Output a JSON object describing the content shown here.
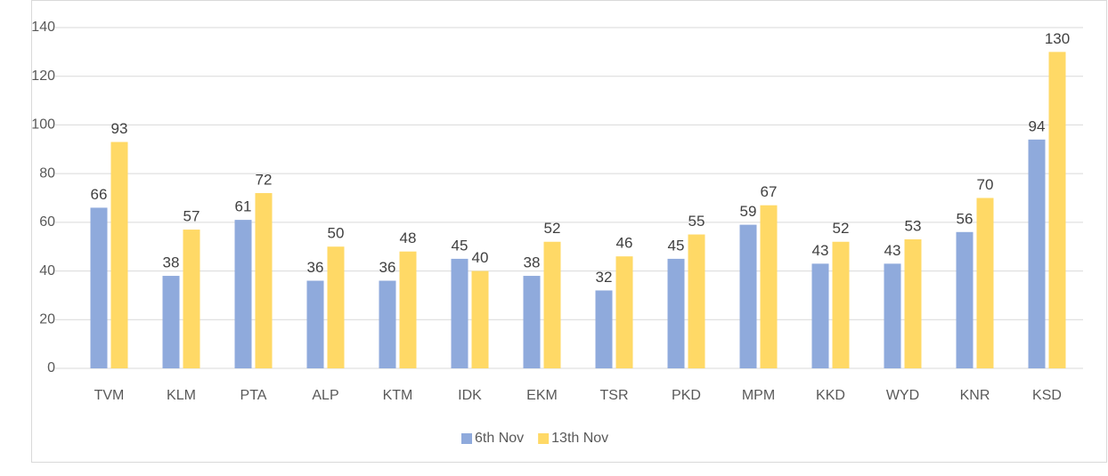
{
  "chart_data": {
    "type": "bar",
    "categories": [
      "TVM",
      "KLM",
      "PTA",
      "ALP",
      "KTM",
      "IDK",
      "EKM",
      "TSR",
      "PKD",
      "MPM",
      "KKD",
      "WYD",
      "KNR",
      "KSD"
    ],
    "series": [
      {
        "name": "6th Nov",
        "color": "#8faadc",
        "values": [
          66,
          38,
          61,
          36,
          36,
          45,
          38,
          32,
          45,
          59,
          43,
          43,
          56,
          94
        ]
      },
      {
        "name": "13th Nov",
        "color": "#ffd966",
        "values": [
          93,
          57,
          72,
          50,
          48,
          40,
          52,
          46,
          55,
          67,
          52,
          53,
          70,
          130
        ]
      }
    ],
    "ylim": [
      0,
      140
    ],
    "yticks": [
      0,
      20,
      40,
      60,
      80,
      100,
      120,
      140
    ],
    "grid": true,
    "legend": "bottom"
  }
}
